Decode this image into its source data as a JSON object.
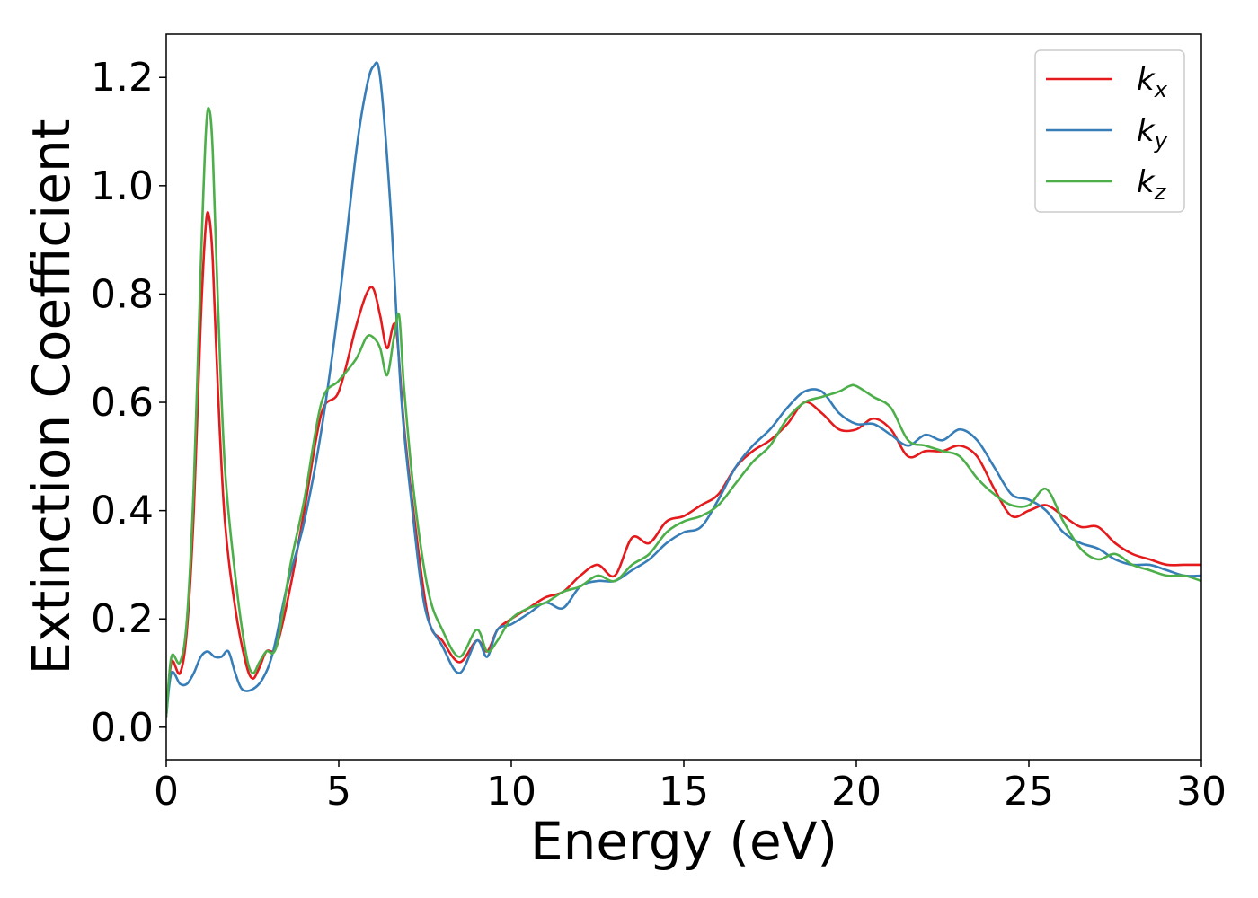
{
  "chart_data": {
    "type": "line",
    "title": "",
    "xlabel": "Energy (eV)",
    "ylabel": "Extinction Coefficient",
    "xlim": [
      0,
      30
    ],
    "ylim": [
      -0.06,
      1.28
    ],
    "xticks": [
      0,
      5,
      10,
      15,
      20,
      25,
      30
    ],
    "yticks": [
      0.0,
      0.2,
      0.4,
      0.6,
      0.8,
      1.0,
      1.2
    ],
    "xtick_labels": [
      "0",
      "5",
      "10",
      "15",
      "20",
      "25",
      "30"
    ],
    "ytick_labels": [
      "0.0",
      "0.2",
      "0.4",
      "0.6",
      "0.8",
      "1.0",
      "1.2"
    ],
    "grid": false,
    "legend_position": "top-right",
    "series": [
      {
        "name": "k_x",
        "legend_main": "k",
        "legend_sub": "x",
        "color": "#e41a1c",
        "x": [
          0,
          0.15,
          0.4,
          0.6,
          0.8,
          1.0,
          1.15,
          1.25,
          1.35,
          1.5,
          1.7,
          2.0,
          2.3,
          2.5,
          2.7,
          2.9,
          3.2,
          3.6,
          4.0,
          4.5,
          5.0,
          5.5,
          5.8,
          6.0,
          6.2,
          6.4,
          6.65,
          6.9,
          7.2,
          7.6,
          8.0,
          8.5,
          9.0,
          9.3,
          9.6,
          10.0,
          10.5,
          11.0,
          11.5,
          12.0,
          12.5,
          13.0,
          13.5,
          14.0,
          14.5,
          15.0,
          15.5,
          16.0,
          16.5,
          17.0,
          17.5,
          18.0,
          18.5,
          19.0,
          19.5,
          20.0,
          20.5,
          21.0,
          21.5,
          22.0,
          22.5,
          23.0,
          23.5,
          24.0,
          24.5,
          25.0,
          25.5,
          26.0,
          26.5,
          27.0,
          27.5,
          28.0,
          28.5,
          29.0,
          29.5,
          30.0
        ],
        "y": [
          0.02,
          0.12,
          0.1,
          0.18,
          0.4,
          0.75,
          0.93,
          0.94,
          0.86,
          0.62,
          0.38,
          0.22,
          0.12,
          0.09,
          0.11,
          0.14,
          0.15,
          0.26,
          0.4,
          0.58,
          0.62,
          0.74,
          0.8,
          0.81,
          0.76,
          0.7,
          0.74,
          0.55,
          0.38,
          0.2,
          0.16,
          0.12,
          0.16,
          0.14,
          0.18,
          0.2,
          0.22,
          0.24,
          0.25,
          0.28,
          0.3,
          0.28,
          0.35,
          0.34,
          0.38,
          0.39,
          0.41,
          0.43,
          0.48,
          0.51,
          0.53,
          0.56,
          0.6,
          0.58,
          0.55,
          0.55,
          0.57,
          0.55,
          0.5,
          0.51,
          0.51,
          0.52,
          0.5,
          0.44,
          0.39,
          0.4,
          0.41,
          0.39,
          0.37,
          0.37,
          0.34,
          0.32,
          0.31,
          0.3,
          0.3,
          0.3
        ]
      },
      {
        "name": "k_y",
        "legend_main": "k",
        "legend_sub": "y",
        "color": "#377eb8",
        "x": [
          0,
          0.15,
          0.4,
          0.6,
          0.8,
          1.0,
          1.2,
          1.4,
          1.6,
          1.8,
          2.0,
          2.2,
          2.5,
          2.8,
          3.1,
          3.5,
          4.0,
          4.5,
          5.0,
          5.5,
          5.8,
          6.0,
          6.2,
          6.5,
          6.8,
          7.1,
          7.5,
          8.0,
          8.5,
          9.0,
          9.3,
          9.6,
          10.0,
          10.5,
          11.0,
          11.5,
          12.0,
          12.5,
          13.0,
          13.5,
          14.0,
          14.5,
          15.0,
          15.5,
          16.0,
          16.5,
          17.0,
          17.5,
          18.0,
          18.5,
          19.0,
          19.5,
          20.0,
          20.5,
          21.0,
          21.5,
          22.0,
          22.5,
          23.0,
          23.5,
          24.0,
          24.5,
          25.0,
          25.5,
          26.0,
          26.5,
          27.0,
          27.5,
          28.0,
          28.5,
          29.0,
          29.5,
          30.0
        ],
        "y": [
          0.02,
          0.1,
          0.08,
          0.08,
          0.1,
          0.13,
          0.14,
          0.13,
          0.13,
          0.14,
          0.1,
          0.07,
          0.07,
          0.09,
          0.14,
          0.26,
          0.38,
          0.55,
          0.78,
          1.06,
          1.18,
          1.22,
          1.2,
          0.96,
          0.62,
          0.42,
          0.22,
          0.15,
          0.1,
          0.16,
          0.13,
          0.18,
          0.19,
          0.21,
          0.23,
          0.22,
          0.26,
          0.27,
          0.27,
          0.29,
          0.31,
          0.34,
          0.36,
          0.37,
          0.42,
          0.48,
          0.52,
          0.55,
          0.59,
          0.62,
          0.62,
          0.58,
          0.56,
          0.56,
          0.54,
          0.52,
          0.54,
          0.53,
          0.55,
          0.53,
          0.48,
          0.43,
          0.42,
          0.4,
          0.36,
          0.34,
          0.33,
          0.31,
          0.3,
          0.3,
          0.29,
          0.28,
          0.28
        ]
      },
      {
        "name": "k_z",
        "legend_main": "k",
        "legend_sub": "z",
        "color": "#4daf4a",
        "x": [
          0,
          0.15,
          0.4,
          0.6,
          0.8,
          1.0,
          1.15,
          1.25,
          1.35,
          1.5,
          1.7,
          2.0,
          2.3,
          2.5,
          2.7,
          2.9,
          3.2,
          3.6,
          4.0,
          4.5,
          5.0,
          5.5,
          5.8,
          6.0,
          6.2,
          6.4,
          6.6,
          6.75,
          6.9,
          7.2,
          7.6,
          8.0,
          8.5,
          9.0,
          9.3,
          9.6,
          10.0,
          10.5,
          11.0,
          11.5,
          12.0,
          12.5,
          13.0,
          13.5,
          14.0,
          14.5,
          15.0,
          15.5,
          16.0,
          16.5,
          17.0,
          17.5,
          18.0,
          18.5,
          19.0,
          19.5,
          19.8,
          20.0,
          20.5,
          21.0,
          21.5,
          22.0,
          22.5,
          23.0,
          23.5,
          24.0,
          24.5,
          25.0,
          25.5,
          26.0,
          26.5,
          27.0,
          27.5,
          28.0,
          28.5,
          29.0,
          29.5,
          30.0
        ],
        "y": [
          0.02,
          0.13,
          0.12,
          0.2,
          0.45,
          0.85,
          1.1,
          1.14,
          1.06,
          0.78,
          0.48,
          0.28,
          0.14,
          0.1,
          0.12,
          0.14,
          0.15,
          0.3,
          0.42,
          0.6,
          0.64,
          0.68,
          0.72,
          0.72,
          0.7,
          0.65,
          0.72,
          0.76,
          0.62,
          0.42,
          0.25,
          0.18,
          0.13,
          0.18,
          0.14,
          0.16,
          0.2,
          0.22,
          0.23,
          0.25,
          0.26,
          0.28,
          0.27,
          0.3,
          0.32,
          0.36,
          0.38,
          0.39,
          0.41,
          0.45,
          0.49,
          0.52,
          0.57,
          0.6,
          0.61,
          0.62,
          0.63,
          0.63,
          0.61,
          0.59,
          0.53,
          0.52,
          0.51,
          0.5,
          0.46,
          0.43,
          0.41,
          0.41,
          0.44,
          0.38,
          0.33,
          0.31,
          0.32,
          0.3,
          0.29,
          0.28,
          0.28,
          0.27
        ]
      }
    ]
  }
}
